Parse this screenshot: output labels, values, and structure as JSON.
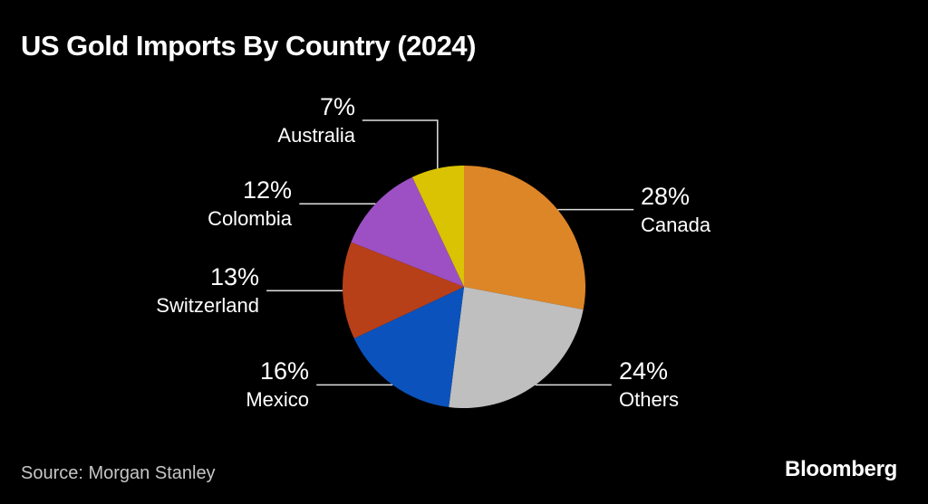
{
  "title": "US Gold Imports By Country (2024)",
  "source": "Source: Morgan Stanley",
  "brand": "Bloomberg",
  "colors": {
    "background": "#000000",
    "title_text": "#FFFFFF",
    "label_text": "#FFFFFF",
    "source_text": "#C6C6C6",
    "brand_text": "#FFFFFF",
    "leader_line": "#E0E0E0"
  },
  "chart_data": {
    "type": "pie",
    "title": "US Gold Imports By Country (2024)",
    "unit": "%",
    "start_angle_deg": 0,
    "direction": "clockwise",
    "legend": "none",
    "labels_shown": true,
    "slices": [
      {
        "label": "Canada",
        "value": 28,
        "color": "#DD8627",
        "callout": "right"
      },
      {
        "label": "Others",
        "value": 24,
        "color": "#BFBFBF",
        "callout": "right"
      },
      {
        "label": "Mexico",
        "value": 16,
        "color": "#0B52BC",
        "callout": "left"
      },
      {
        "label": "Switzerland",
        "value": 13,
        "color": "#B84019",
        "callout": "left"
      },
      {
        "label": "Colombia",
        "value": 12,
        "color": "#9D50C4",
        "callout": "left"
      },
      {
        "label": "Australia",
        "value": 7,
        "color": "#D9C303",
        "callout": "top"
      }
    ]
  }
}
